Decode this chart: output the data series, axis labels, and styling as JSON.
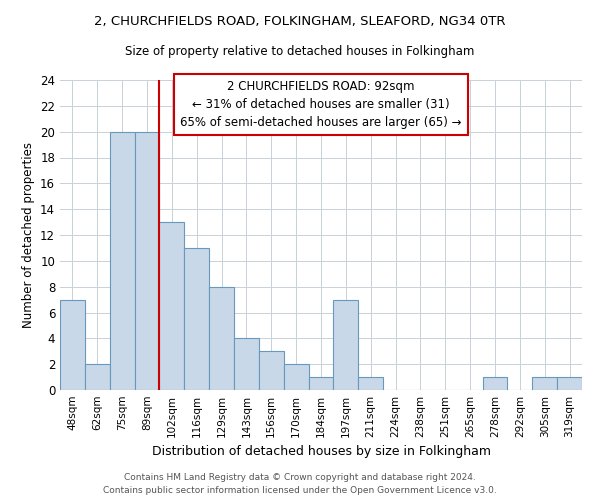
{
  "title": "2, CHURCHFIELDS ROAD, FOLKINGHAM, SLEAFORD, NG34 0TR",
  "subtitle": "Size of property relative to detached houses in Folkingham",
  "xlabel": "Distribution of detached houses by size in Folkingham",
  "ylabel": "Number of detached properties",
  "bin_labels": [
    "48sqm",
    "62sqm",
    "75sqm",
    "89sqm",
    "102sqm",
    "116sqm",
    "129sqm",
    "143sqm",
    "156sqm",
    "170sqm",
    "184sqm",
    "197sqm",
    "211sqm",
    "224sqm",
    "238sqm",
    "251sqm",
    "265sqm",
    "278sqm",
    "292sqm",
    "305sqm",
    "319sqm"
  ],
  "bar_heights": [
    7,
    2,
    20,
    20,
    13,
    11,
    8,
    4,
    3,
    2,
    1,
    7,
    1,
    0,
    0,
    0,
    0,
    1,
    0,
    1,
    1
  ],
  "bar_color": "#c8d8e8",
  "bar_edge_color": "#6699bb",
  "vline_x_idx": 3.5,
  "vline_color": "#cc0000",
  "annotation_title": "2 CHURCHFIELDS ROAD: 92sqm",
  "annotation_line1": "← 31% of detached houses are smaller (31)",
  "annotation_line2": "65% of semi-detached houses are larger (65) →",
  "ylim": [
    0,
    24
  ],
  "yticks": [
    0,
    2,
    4,
    6,
    8,
    10,
    12,
    14,
    16,
    18,
    20,
    22,
    24
  ],
  "footer_line1": "Contains HM Land Registry data © Crown copyright and database right 2024.",
  "footer_line2": "Contains public sector information licensed under the Open Government Licence v3.0.",
  "background_color": "#ffffff",
  "grid_color": "#c8d0d8"
}
